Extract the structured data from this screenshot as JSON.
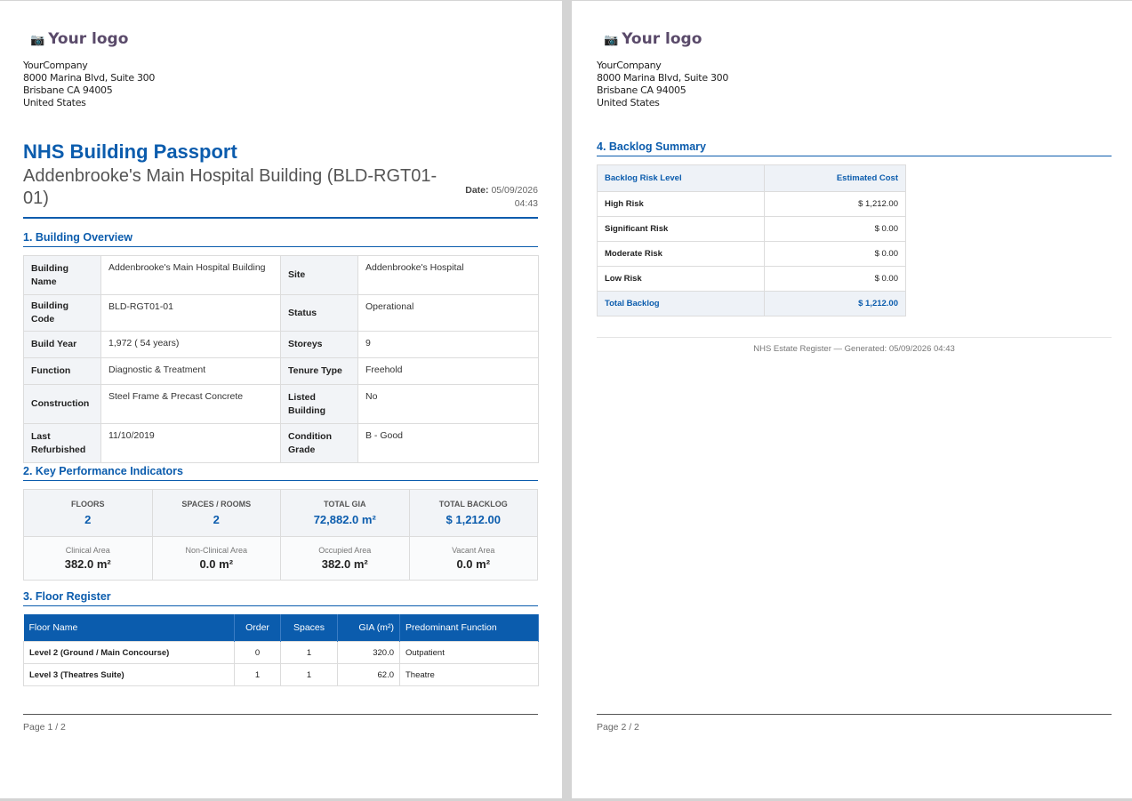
{
  "header": {
    "logo_text": "Your logo",
    "company": [
      "YourCompany",
      "8000 Marina Blvd, Suite 300",
      "Brisbane CA 94005",
      "United States"
    ]
  },
  "doc": {
    "title": "NHS Building Passport",
    "subtitle": "Addenbrooke's Main Hospital Building (BLD-RGT01-01)",
    "date_label": "Date:",
    "date_value": "05/09/2026",
    "time_value": "04:43"
  },
  "overview": {
    "section": "1. Building Overview",
    "rows": [
      {
        "k1": "Building Name",
        "v1": "Addenbrooke's Main Hospital Building",
        "k2": "Site",
        "v2": "Addenbrooke's Hospital"
      },
      {
        "k1": "Building Code",
        "v1": "BLD-RGT01-01",
        "k2": "Status",
        "v2": "Operational"
      },
      {
        "k1": "Build Year",
        "v1": "1,972 ( 54 years)",
        "k2": "Storeys",
        "v2": "9"
      },
      {
        "k1": "Function",
        "v1": "Diagnostic & Treatment",
        "k2": "Tenure Type",
        "v2": "Freehold"
      },
      {
        "k1": "Construction",
        "v1": "Steel Frame & Precast Concrete",
        "k2": "Listed Building",
        "v2": "No"
      },
      {
        "k1": "Last Refurbished",
        "v1": "11/10/2019",
        "k2": "Condition Grade",
        "v2": "B - Good"
      }
    ]
  },
  "kpi": {
    "section": "2. Key Performance Indicators",
    "top": [
      {
        "label": "FLOORS",
        "value": "2"
      },
      {
        "label": "SPACES / ROOMS",
        "value": "2"
      },
      {
        "label": "TOTAL GIA",
        "value": "72,882.0 m²"
      },
      {
        "label": "TOTAL BACKLOG",
        "value": "$ 1,212.00"
      }
    ],
    "bottom": [
      {
        "label": "Clinical Area",
        "value": "382.0 m²"
      },
      {
        "label": "Non-Clinical Area",
        "value": "0.0 m²"
      },
      {
        "label": "Occupied Area",
        "value": "382.0 m²"
      },
      {
        "label": "Vacant Area",
        "value": "0.0 m²"
      }
    ]
  },
  "floors": {
    "section": "3. Floor Register",
    "headers": [
      "Floor Name",
      "Order",
      "Spaces",
      "GIA (m²)",
      "Predominant Function"
    ],
    "rows": [
      [
        "Level 2 (Ground / Main Concourse)",
        "0",
        "1",
        "320.0",
        "Outpatient"
      ],
      [
        "Level 3 (Theatres Suite)",
        "1",
        "1",
        "62.0",
        "Theatre"
      ]
    ]
  },
  "backlog": {
    "section": "4. Backlog Summary",
    "headers": [
      "Backlog Risk Level",
      "Estimated Cost"
    ],
    "rows": [
      [
        "High Risk",
        "$ 1,212.00"
      ],
      [
        "Significant Risk",
        "$ 0.00"
      ],
      [
        "Moderate Risk",
        "$ 0.00"
      ],
      [
        "Low Risk",
        "$ 0.00"
      ]
    ],
    "total": [
      "Total Backlog",
      "$ 1,212.00"
    ]
  },
  "footer": {
    "generated": "NHS Estate Register — Generated: 05/09/2026 04:43",
    "page1": "Page 1 / 2",
    "page2": "Page 2 / 2"
  }
}
